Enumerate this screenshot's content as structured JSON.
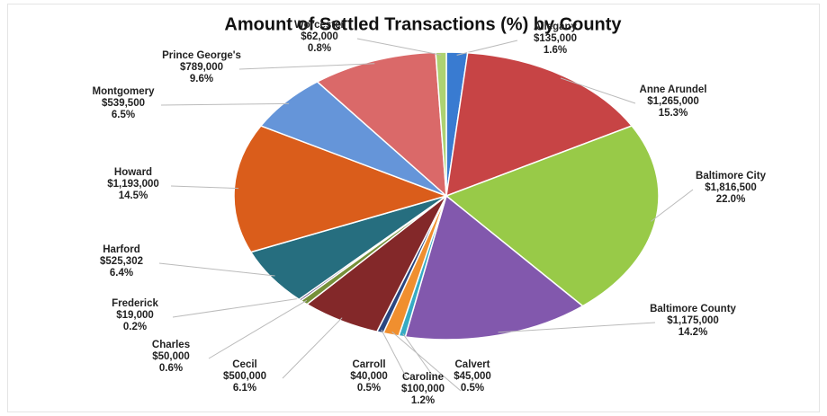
{
  "chart_data": {
    "type": "pie",
    "title": "Amount of Settled Transactions (%) by County",
    "categories": [
      "Allegany",
      "Anne Arundel",
      "Baltimore City",
      "Baltimore County",
      "Calvert",
      "Caroline",
      "Carroll",
      "Cecil",
      "Charles",
      "Frederick",
      "Harford",
      "Howard",
      "Montgomery",
      "Prince George's",
      "Worcester"
    ],
    "values": [
      1.6,
      15.3,
      22.0,
      14.2,
      0.5,
      1.2,
      0.5,
      6.1,
      0.6,
      0.2,
      6.4,
      14.5,
      6.5,
      9.6,
      0.8
    ],
    "value_labels": [
      "1.6%",
      "15.3%",
      "22.0%",
      "14.2%",
      "0.5%",
      "1.2%",
      "0.5%",
      "6.1%",
      "0.6%",
      "0.2%",
      "6.4%",
      "14.5%",
      "6.5%",
      "9.6%",
      "0.8%"
    ],
    "amounts": [
      135000,
      1265000,
      1816500,
      1175000,
      45000,
      100000,
      40000,
      500000,
      50000,
      19000,
      525302,
      1193000,
      539500,
      789000,
      62000
    ],
    "amount_labels": [
      "$135,000",
      "$1,265,000",
      "$1,816,500",
      "$1,175,000",
      "$45,000",
      "$100,000",
      "$40,000",
      "$500,000",
      "$50,000",
      "$19,000",
      "$525,302",
      "$1,193,000",
      "$539,500",
      "$789,000",
      "$62,000"
    ],
    "colors": [
      "#2f74cf",
      "#c53a3c",
      "#93c83f",
      "#7c50a9",
      "#2ca7c1",
      "#f08a24",
      "#1f3d7a",
      "#7d1d1e",
      "#6f8b2f",
      "#4d2f70",
      "#1b6779",
      "#d9550f",
      "#5d90d8",
      "#d96262",
      "#a9d06b"
    ]
  }
}
